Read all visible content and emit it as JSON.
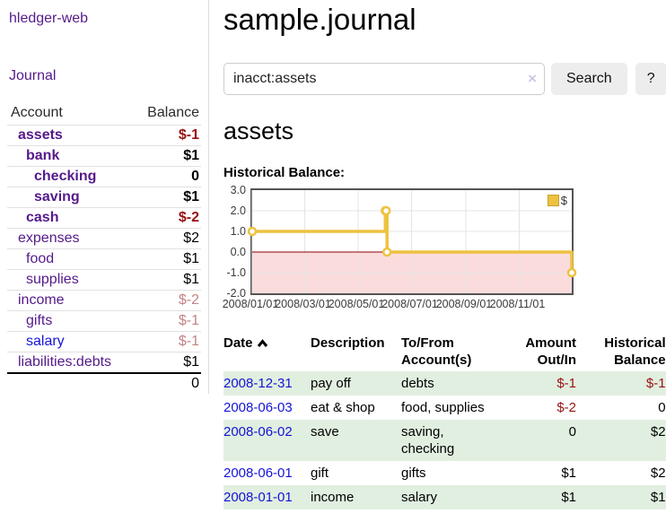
{
  "colors": {
    "link_purple": "#551a8b",
    "link_blue": "#1414d6",
    "negative_strong": "#991111",
    "negative_muted": "#c38383",
    "row_green": "#e1efe0",
    "series_gold": "#edc240",
    "zero_line_red": "#8b0000",
    "negative_fill_pink": "#fbdcdc",
    "grid_line": "#e4e4e4",
    "plot_border": "#545454",
    "button_bg": "#ededed"
  },
  "sidebar": {
    "brand": "hledger-web",
    "journal_link": "Journal",
    "accounts_table": {
      "account_header": "Account",
      "balance_header": "Balance",
      "rows": [
        {
          "name": "assets",
          "balance": "$-1",
          "indent": 1,
          "bold": true,
          "balance_class": "neg-strong",
          "link_class": "lnk-purple"
        },
        {
          "name": "bank",
          "balance": "$1",
          "indent": 2,
          "bold": true,
          "balance_class": "",
          "link_class": "lnk-purple"
        },
        {
          "name": "checking",
          "balance": "0",
          "indent": 3,
          "bold": true,
          "balance_class": "",
          "link_class": "lnk-purple"
        },
        {
          "name": "saving",
          "balance": "$1",
          "indent": 3,
          "bold": true,
          "balance_class": "",
          "link_class": "lnk-purple"
        },
        {
          "name": "cash",
          "balance": "$-2",
          "indent": 2,
          "bold": true,
          "balance_class": "neg-strong",
          "link_class": "lnk-purple"
        },
        {
          "name": "expenses",
          "balance": "$2",
          "indent": 1,
          "bold": false,
          "balance_class": "",
          "link_class": "lnk-purple"
        },
        {
          "name": "food",
          "balance": "$1",
          "indent": 2,
          "bold": false,
          "balance_class": "",
          "link_class": "lnk-purple"
        },
        {
          "name": "supplies",
          "balance": "$1",
          "indent": 2,
          "bold": false,
          "balance_class": "",
          "link_class": "lnk-purple"
        },
        {
          "name": "income",
          "balance": "$-2",
          "indent": 1,
          "bold": false,
          "balance_class": "neg-muted",
          "link_class": "lnk-purple"
        },
        {
          "name": "gifts",
          "balance": "$-1",
          "indent": 2,
          "bold": false,
          "balance_class": "neg-muted",
          "link_class": "lnk-purple"
        },
        {
          "name": "salary",
          "balance": "$-1",
          "indent": 2,
          "bold": false,
          "balance_class": "neg-muted",
          "link_class": "lnk-blue"
        },
        {
          "name": "liabilities:debts",
          "balance": "$1",
          "indent": 1,
          "bold": false,
          "balance_class": "",
          "link_class": "lnk-purple"
        }
      ],
      "total": "0"
    }
  },
  "main": {
    "title": "sample.journal",
    "search": {
      "value": "inacct:assets",
      "clear_icon": "×",
      "button_label": "Search",
      "help_label": "?"
    },
    "account_heading": "assets",
    "register": {
      "headers": [
        {
          "label": "Date",
          "align": "left",
          "sort_icon": "chevron-up"
        },
        {
          "label": "Description",
          "align": "left"
        },
        {
          "label": "To/From Account(s)",
          "align": "left"
        },
        {
          "label": "Amount Out/In",
          "align": "right"
        },
        {
          "label": "Historical Balance",
          "align": "right"
        }
      ],
      "rows": [
        {
          "date": "2008-12-31",
          "description": "pay off",
          "accounts": "debts",
          "amount": "$-1",
          "amount_class": "neg-strong",
          "balance": "$-1",
          "balance_class": "neg-strong"
        },
        {
          "date": "2008-06-03",
          "description": "eat & shop",
          "accounts": "food, supplies",
          "amount": "$-2",
          "amount_class": "neg-strong",
          "balance": "0",
          "balance_class": ""
        },
        {
          "date": "2008-06-02",
          "description": "save",
          "accounts": "saving, checking",
          "amount": "0",
          "amount_class": "",
          "balance": "$2",
          "balance_class": ""
        },
        {
          "date": "2008-06-01",
          "description": "gift",
          "accounts": "gifts",
          "amount": "$1",
          "amount_class": "",
          "balance": "$2",
          "balance_class": ""
        },
        {
          "date": "2008-01-01",
          "description": "income",
          "accounts": "salary",
          "amount": "$1",
          "amount_class": "",
          "balance": "$1",
          "balance_class": ""
        }
      ]
    }
  },
  "chart_data": {
    "type": "line",
    "title": "Historical Balance:",
    "step": true,
    "legend": {
      "label": "$",
      "position": "top-right"
    },
    "series": [
      {
        "name": "$",
        "color": "#edc240",
        "points": [
          [
            "2008-01-01",
            1
          ],
          [
            "2008-06-01",
            2
          ],
          [
            "2008-06-02",
            2
          ],
          [
            "2008-06-03",
            0
          ],
          [
            "2008-12-31",
            -1
          ]
        ]
      }
    ],
    "x_start": "2008-01-01",
    "x_end": "2008-12-31",
    "xticks": [
      {
        "date": "2008-01-01",
        "label": "2008/01/01"
      },
      {
        "date": "2008-03-01",
        "label": "2008/03/01"
      },
      {
        "date": "2008-05-01",
        "label": "2008/05/01"
      },
      {
        "date": "2008-07-01",
        "label": "2008/07/01"
      },
      {
        "date": "2008-09-01",
        "label": "2008/09/01"
      },
      {
        "date": "2008-11-01",
        "label": "2008/11/01"
      }
    ],
    "ylim": [
      -2,
      3
    ],
    "yticks": [
      "3.0",
      "2.0",
      "1.0",
      "0.0",
      "-1.0",
      "-2.0"
    ],
    "grid": true,
    "negative_region_below": 0
  }
}
